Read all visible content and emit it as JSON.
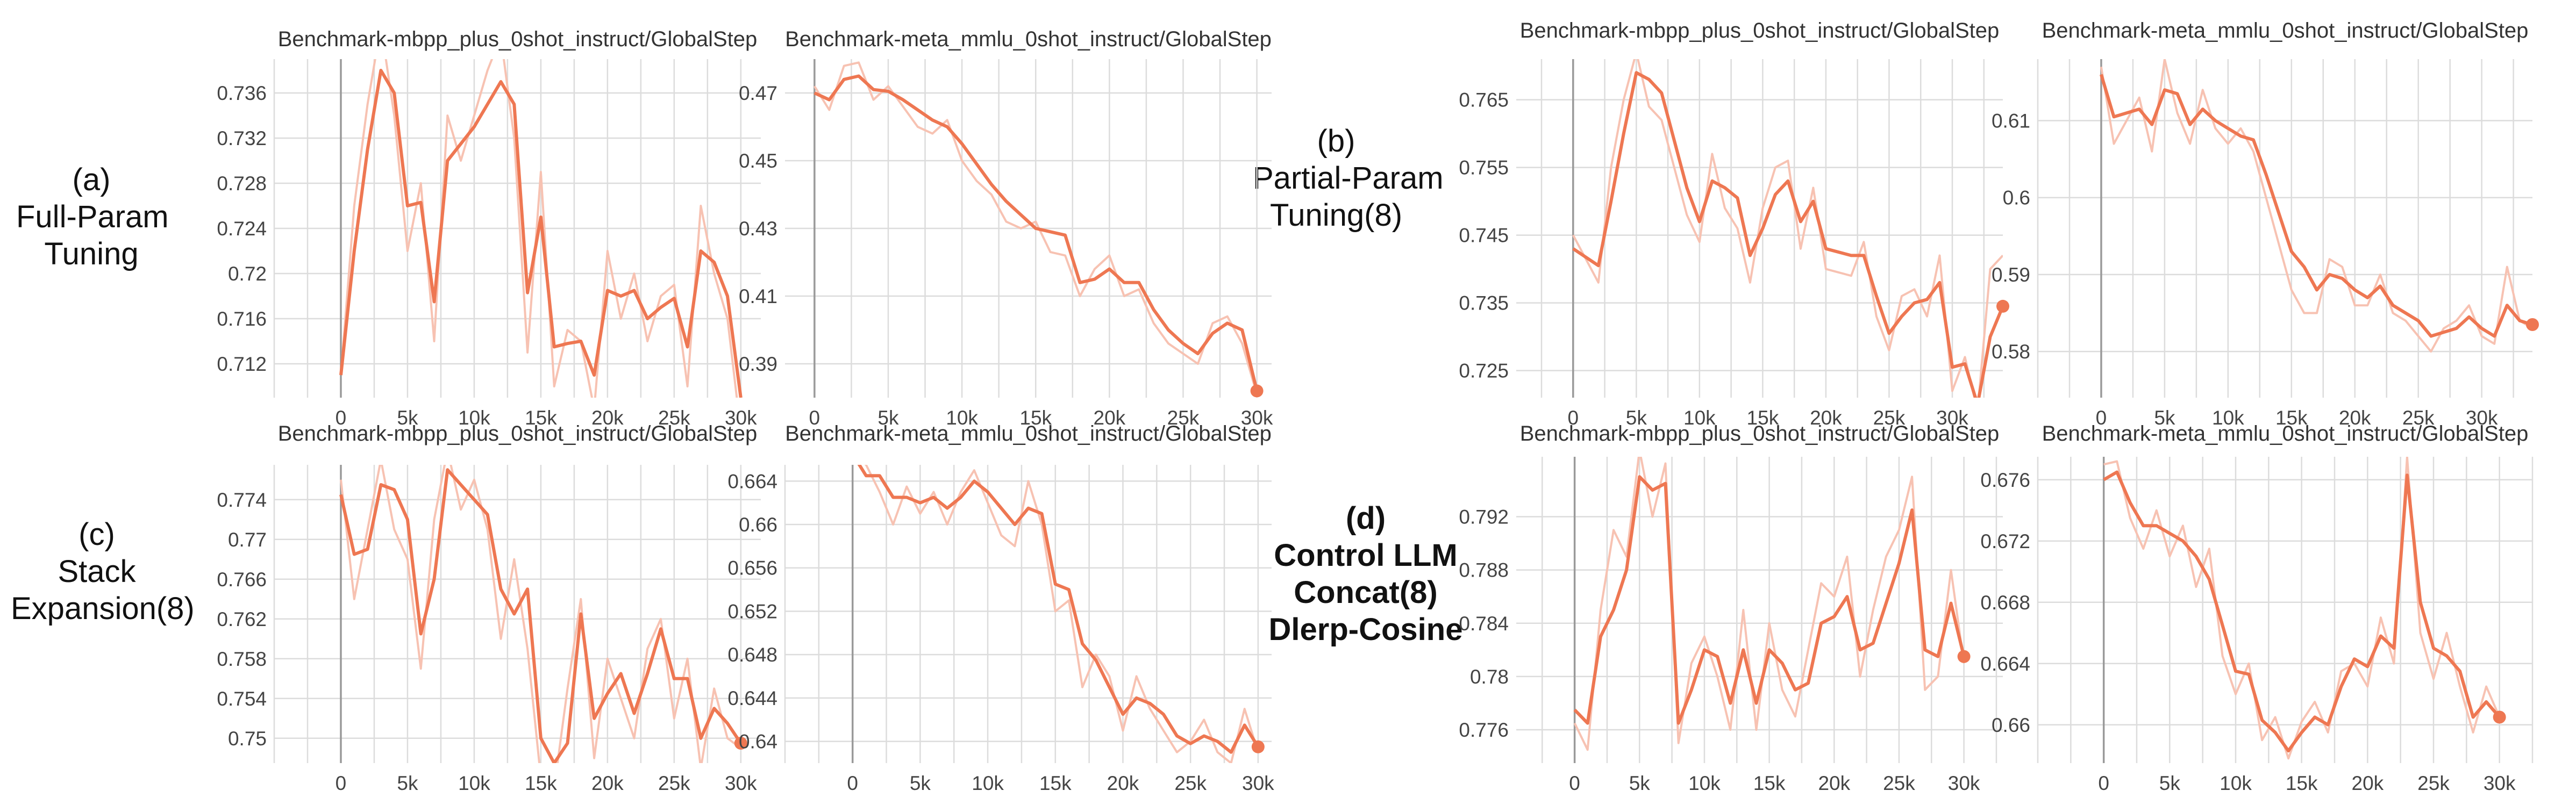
{
  "labels": [
    {
      "id": "a",
      "lines": [
        "(a)",
        "Full-Param",
        "Tuning"
      ],
      "bold": false
    },
    {
      "id": "b",
      "lines": [
        "(b)",
        "Partial-Param",
        "Tuning(8)"
      ],
      "bold": false
    },
    {
      "id": "c",
      "lines": [
        "(c)",
        "Stack",
        "Expansion(8)"
      ],
      "bold": false
    },
    {
      "id": "d",
      "lines": [
        "(d)",
        "Control LLM",
        "Concat(8)",
        "Dlerp-Cosine"
      ],
      "bold": true
    }
  ],
  "style": {
    "line_color": "#ee7752",
    "raw_color": "#f7c2b2",
    "grid_color": "#dcdcdc"
  },
  "chart_data": [
    {
      "panel": "a",
      "type": "line",
      "title": "Benchmark-mbpp_plus_0shot_instruct/GlobalStep",
      "ylim": [
        0.709,
        0.739
      ],
      "yticks": [
        0.712,
        0.716,
        0.72,
        0.724,
        0.728,
        0.732,
        0.736
      ],
      "xlim": [
        -5000,
        31500
      ],
      "xticks": [
        0,
        5000,
        10000,
        15000,
        20000,
        25000,
        30000
      ],
      "xtick_labels": [
        "0",
        "5k",
        "10k",
        "15k",
        "20k",
        "25k",
        "30k"
      ],
      "x": [
        0,
        1000,
        2000,
        3000,
        4000,
        5000,
        6000,
        7000,
        8000,
        9000,
        10000,
        11000,
        12000,
        13000,
        14000,
        15000,
        16000,
        17000,
        18000,
        19000,
        20000,
        21000,
        22000,
        23000,
        24000,
        25000,
        26000,
        27000,
        28000,
        29000,
        30000
      ],
      "y": [
        0.711,
        0.722,
        0.731,
        0.738,
        0.736,
        0.726,
        0.7263,
        0.7175,
        0.73,
        0.7315,
        0.733,
        0.735,
        0.737,
        0.735,
        0.7183,
        0.725,
        0.7135,
        0.7138,
        0.714,
        0.711,
        0.7185,
        0.718,
        0.7185,
        0.716,
        0.717,
        0.7178,
        0.7135,
        0.722,
        0.721,
        0.718,
        0.709
      ],
      "raw": [
        0.711,
        0.726,
        0.735,
        0.742,
        0.734,
        0.722,
        0.728,
        0.714,
        0.734,
        0.73,
        0.734,
        0.738,
        0.741,
        0.732,
        0.713,
        0.729,
        0.71,
        0.715,
        0.714,
        0.708,
        0.722,
        0.716,
        0.72,
        0.714,
        0.718,
        0.719,
        0.71,
        0.726,
        0.72,
        0.716,
        0.706
      ],
      "marker": false
    },
    {
      "panel": "a",
      "type": "line",
      "title": "Benchmark-meta_mmlu_0shot_instruct/GlobalStep",
      "ylim": [
        0.38,
        0.48
      ],
      "yticks": [
        0.39,
        0.41,
        0.43,
        0.45,
        0.47
      ],
      "xlim": [
        -2000,
        31000
      ],
      "xticks": [
        0,
        5000,
        10000,
        15000,
        20000,
        25000,
        30000
      ],
      "xtick_labels": [
        "0",
        "5k",
        "10k",
        "15k",
        "20k",
        "25k",
        "30k"
      ],
      "x": [
        0,
        1000,
        2000,
        3000,
        4000,
        5000,
        6000,
        7000,
        8000,
        9000,
        10000,
        11000,
        12000,
        13000,
        14000,
        15000,
        16000,
        17000,
        18000,
        19000,
        20000,
        21000,
        22000,
        23000,
        24000,
        25000,
        26000,
        27000,
        28000,
        29000,
        30000
      ],
      "y": [
        0.47,
        0.468,
        0.474,
        0.475,
        0.471,
        0.4705,
        0.468,
        0.465,
        0.462,
        0.46,
        0.455,
        0.449,
        0.443,
        0.438,
        0.434,
        0.43,
        0.429,
        0.428,
        0.414,
        0.415,
        0.418,
        0.414,
        0.414,
        0.406,
        0.4,
        0.396,
        0.393,
        0.399,
        0.402,
        0.4,
        0.382
      ],
      "raw": [
        0.472,
        0.465,
        0.478,
        0.479,
        0.468,
        0.472,
        0.466,
        0.46,
        0.458,
        0.462,
        0.45,
        0.444,
        0.44,
        0.432,
        0.43,
        0.432,
        0.423,
        0.422,
        0.41,
        0.418,
        0.422,
        0.41,
        0.412,
        0.402,
        0.396,
        0.393,
        0.39,
        0.402,
        0.404,
        0.396,
        0.381
      ],
      "marker": true
    },
    {
      "panel": "b",
      "type": "line",
      "title": "Benchmark-mbpp_plus_0shot_instruct/GlobalStep",
      "ylim": [
        0.721,
        0.771
      ],
      "yticks": [
        0.725,
        0.735,
        0.745,
        0.755,
        0.765
      ],
      "xlim": [
        -4500,
        34000
      ],
      "xticks": [
        0,
        5000,
        10000,
        15000,
        20000,
        25000,
        30000
      ],
      "xtick_labels": [
        "0",
        "5k",
        "10k",
        "15k",
        "20k",
        "25k",
        "30k"
      ],
      "x": [
        0,
        2000,
        3000,
        4000,
        5000,
        6000,
        7000,
        8000,
        9000,
        10000,
        11000,
        12000,
        13000,
        14000,
        15000,
        16000,
        17000,
        18000,
        19000,
        20000,
        22000,
        23000,
        24000,
        25000,
        26000,
        27000,
        28000,
        29000,
        30000,
        31000,
        32000,
        33000,
        34000
      ],
      "y": [
        0.743,
        0.7405,
        0.75,
        0.76,
        0.769,
        0.768,
        0.766,
        0.759,
        0.752,
        0.747,
        0.753,
        0.752,
        0.7505,
        0.742,
        0.746,
        0.751,
        0.753,
        0.747,
        0.75,
        0.743,
        0.742,
        0.742,
        0.736,
        0.7305,
        0.733,
        0.735,
        0.7355,
        0.738,
        0.7255,
        0.726,
        0.72,
        0.73,
        0.7345
      ],
      "raw": [
        0.745,
        0.738,
        0.755,
        0.765,
        0.772,
        0.764,
        0.762,
        0.755,
        0.748,
        0.744,
        0.757,
        0.749,
        0.746,
        0.738,
        0.749,
        0.755,
        0.756,
        0.743,
        0.752,
        0.74,
        0.739,
        0.744,
        0.733,
        0.728,
        0.736,
        0.737,
        0.733,
        0.742,
        0.722,
        0.727,
        0.719,
        0.74,
        0.742
      ],
      "marker": true
    },
    {
      "panel": "b",
      "type": "line",
      "title": "Benchmark-meta_mmlu_0shot_instruct/GlobalStep",
      "ylim": [
        0.574,
        0.618
      ],
      "yticks": [
        0.58,
        0.59,
        0.6,
        0.61
      ],
      "xlim": [
        -5000,
        34000
      ],
      "xticks": [
        0,
        5000,
        10000,
        15000,
        20000,
        25000,
        30000
      ],
      "xtick_labels": [
        "0",
        "5k",
        "10k",
        "15k",
        "20k",
        "25k",
        "30k"
      ],
      "x": [
        0,
        1000,
        2000,
        3000,
        4000,
        5000,
        6000,
        7000,
        8000,
        9000,
        10000,
        11000,
        12000,
        13000,
        14000,
        15000,
        16000,
        17000,
        18000,
        19000,
        20000,
        21000,
        22000,
        23000,
        24000,
        25000,
        26000,
        27000,
        28000,
        29000,
        30000,
        31000,
        32000,
        33000,
        34000
      ],
      "y": [
        0.616,
        0.6105,
        0.611,
        0.6115,
        0.6095,
        0.614,
        0.6135,
        0.6095,
        0.6115,
        0.61,
        0.609,
        0.608,
        0.6075,
        0.603,
        0.598,
        0.593,
        0.591,
        0.588,
        0.59,
        0.5895,
        0.588,
        0.587,
        0.5885,
        0.586,
        0.585,
        0.584,
        0.582,
        0.5825,
        0.583,
        0.5845,
        0.583,
        0.582,
        0.586,
        0.584,
        0.5835
      ],
      "raw": [
        0.617,
        0.607,
        0.61,
        0.613,
        0.606,
        0.618,
        0.611,
        0.607,
        0.614,
        0.609,
        0.607,
        0.609,
        0.606,
        0.6,
        0.594,
        0.588,
        0.585,
        0.585,
        0.592,
        0.591,
        0.586,
        0.586,
        0.59,
        0.585,
        0.584,
        0.582,
        0.58,
        0.583,
        0.584,
        0.586,
        0.582,
        0.581,
        0.591,
        0.584,
        0.583
      ],
      "marker": true
    },
    {
      "panel": "c",
      "type": "line",
      "title": "Benchmark-mbpp_plus_0shot_instruct/GlobalStep",
      "ylim": [
        0.7475,
        0.7775
      ],
      "yticks": [
        0.75,
        0.754,
        0.758,
        0.762,
        0.766,
        0.77,
        0.774
      ],
      "xlim": [
        -5000,
        31500
      ],
      "xticks": [
        0,
        5000,
        10000,
        15000,
        20000,
        25000,
        30000
      ],
      "xtick_labels": [
        "0",
        "5k",
        "10k",
        "15k",
        "20k",
        "25k",
        "30k"
      ],
      "x": [
        0,
        1000,
        2000,
        3000,
        4000,
        5000,
        6000,
        7000,
        8000,
        9000,
        10000,
        11000,
        12000,
        13000,
        14000,
        15000,
        16000,
        17000,
        18000,
        19000,
        20000,
        21000,
        22000,
        23000,
        24000,
        25000,
        26000,
        27000,
        28000,
        29000,
        30000
      ],
      "y": [
        0.7745,
        0.7685,
        0.769,
        0.7755,
        0.775,
        0.772,
        0.7605,
        0.766,
        0.777,
        0.7755,
        0.774,
        0.7725,
        0.765,
        0.7625,
        0.765,
        0.75,
        0.7475,
        0.7495,
        0.7625,
        0.752,
        0.7545,
        0.7565,
        0.7525,
        0.7565,
        0.761,
        0.756,
        0.756,
        0.75,
        0.753,
        0.7515,
        0.7495
      ],
      "raw": [
        0.776,
        0.764,
        0.771,
        0.778,
        0.771,
        0.768,
        0.757,
        0.772,
        0.779,
        0.773,
        0.776,
        0.771,
        0.76,
        0.768,
        0.759,
        0.746,
        0.745,
        0.755,
        0.764,
        0.748,
        0.758,
        0.754,
        0.75,
        0.759,
        0.762,
        0.752,
        0.758,
        0.747,
        0.755,
        0.75,
        0.749
      ],
      "marker": true
    },
    {
      "panel": "c",
      "type": "line",
      "title": "Benchmark-meta_mmlu_0shot_instruct/GlobalStep",
      "ylim": [
        0.638,
        0.6655
      ],
      "yticks": [
        0.64,
        0.644,
        0.648,
        0.652,
        0.656,
        0.66,
        0.664
      ],
      "xlim": [
        -5000,
        31000
      ],
      "xticks": [
        0,
        5000,
        10000,
        15000,
        20000,
        25000,
        30000
      ],
      "xtick_labels": [
        "0",
        "5k",
        "10k",
        "15k",
        "20k",
        "25k",
        "30k"
      ],
      "x": [
        0,
        1000,
        2000,
        3000,
        4000,
        5000,
        6000,
        7000,
        8000,
        9000,
        10000,
        11000,
        12000,
        13000,
        14000,
        15000,
        16000,
        17000,
        18000,
        19000,
        20000,
        21000,
        22000,
        23000,
        24000,
        25000,
        26000,
        27000,
        28000,
        29000,
        30000
      ],
      "y": [
        0.6665,
        0.6645,
        0.6645,
        0.6625,
        0.6625,
        0.662,
        0.6625,
        0.6615,
        0.6625,
        0.664,
        0.663,
        0.6615,
        0.66,
        0.6615,
        0.661,
        0.6545,
        0.654,
        0.649,
        0.6475,
        0.645,
        0.6425,
        0.644,
        0.6435,
        0.6425,
        0.6405,
        0.6398,
        0.6405,
        0.64,
        0.639,
        0.6415,
        0.6395
      ],
      "raw": [
        0.6665,
        0.6655,
        0.663,
        0.66,
        0.6635,
        0.661,
        0.663,
        0.66,
        0.663,
        0.665,
        0.662,
        0.659,
        0.658,
        0.664,
        0.66,
        0.652,
        0.653,
        0.645,
        0.648,
        0.646,
        0.641,
        0.646,
        0.643,
        0.641,
        0.639,
        0.64,
        0.642,
        0.639,
        0.638,
        0.643,
        0.639
      ],
      "marker": true
    },
    {
      "panel": "d",
      "type": "line",
      "title": "Benchmark-mbpp_plus_0shot_instruct/GlobalStep",
      "ylim": [
        0.7735,
        0.7965
      ],
      "yticks": [
        0.776,
        0.78,
        0.784,
        0.788,
        0.792
      ],
      "xlim": [
        -4500,
        33000
      ],
      "xticks": [
        0,
        5000,
        10000,
        15000,
        20000,
        25000,
        30000
      ],
      "xtick_labels": [
        "0",
        "5k",
        "10k",
        "15k",
        "20k",
        "25k",
        "30k"
      ],
      "x": [
        0,
        1000,
        2000,
        3000,
        4000,
        5000,
        6000,
        7000,
        8000,
        9000,
        10000,
        11000,
        12000,
        13000,
        14000,
        15000,
        16000,
        17000,
        18000,
        19000,
        20000,
        21000,
        22000,
        23000,
        24000,
        25000,
        26000,
        27000,
        28000,
        29000,
        30000
      ],
      "y": [
        0.7775,
        0.7765,
        0.783,
        0.785,
        0.788,
        0.795,
        0.794,
        0.7945,
        0.7765,
        0.779,
        0.782,
        0.7815,
        0.778,
        0.782,
        0.778,
        0.782,
        0.781,
        0.779,
        0.7795,
        0.784,
        0.7845,
        0.786,
        0.782,
        0.7825,
        0.7855,
        0.7885,
        0.7925,
        0.782,
        0.7815,
        0.7855,
        0.7815
      ],
      "raw": [
        0.7765,
        0.7745,
        0.785,
        0.791,
        0.789,
        0.797,
        0.792,
        0.796,
        0.775,
        0.781,
        0.783,
        0.78,
        0.776,
        0.785,
        0.776,
        0.784,
        0.779,
        0.777,
        0.782,
        0.787,
        0.786,
        0.789,
        0.78,
        0.785,
        0.789,
        0.791,
        0.795,
        0.779,
        0.78,
        0.788,
        0.781
      ],
      "marker": true
    },
    {
      "panel": "d",
      "type": "line",
      "title": "Benchmark-meta_mmlu_0shot_instruct/GlobalStep",
      "ylim": [
        0.6575,
        0.6775
      ],
      "yticks": [
        0.66,
        0.664,
        0.668,
        0.672,
        0.676
      ],
      "xlim": [
        -5000,
        32500
      ],
      "xticks": [
        0,
        5000,
        10000,
        15000,
        20000,
        25000,
        30000
      ],
      "xtick_labels": [
        "0",
        "5k",
        "10k",
        "15k",
        "20k",
        "25k",
        "30k"
      ],
      "x": [
        0,
        1000,
        2000,
        3000,
        4000,
        5000,
        6000,
        7000,
        8000,
        9000,
        10000,
        11000,
        12000,
        13000,
        14000,
        15000,
        16000,
        17000,
        18000,
        19000,
        20000,
        21000,
        22000,
        23000,
        24000,
        25000,
        26000,
        27000,
        28000,
        29000,
        30000
      ],
      "y": [
        0.676,
        0.6765,
        0.6745,
        0.673,
        0.673,
        0.6725,
        0.672,
        0.671,
        0.6695,
        0.6665,
        0.6635,
        0.6633,
        0.6603,
        0.6595,
        0.6583,
        0.6595,
        0.6605,
        0.66,
        0.6625,
        0.6643,
        0.6638,
        0.6658,
        0.665,
        0.6763,
        0.668,
        0.665,
        0.6645,
        0.6635,
        0.6605,
        0.6615,
        0.6605
      ],
      "raw": [
        0.677,
        0.6772,
        0.6735,
        0.6715,
        0.674,
        0.671,
        0.673,
        0.669,
        0.6715,
        0.6645,
        0.662,
        0.664,
        0.659,
        0.6605,
        0.6578,
        0.6602,
        0.6615,
        0.6595,
        0.6635,
        0.664,
        0.6625,
        0.667,
        0.664,
        0.6775,
        0.666,
        0.663,
        0.666,
        0.6625,
        0.6595,
        0.6625,
        0.6605
      ],
      "marker": true
    }
  ]
}
